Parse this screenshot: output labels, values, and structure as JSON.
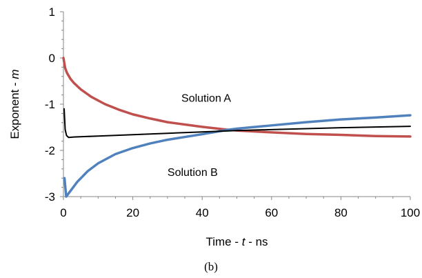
{
  "chart_data": {
    "type": "line",
    "xlim": [
      0,
      100
    ],
    "ylim": [
      -3,
      1
    ],
    "x_ticks": [
      0,
      20,
      40,
      60,
      80,
      100
    ],
    "y_ticks": [
      1,
      0,
      -1,
      -2,
      -3
    ],
    "x_tick_labels": [
      "0",
      "20",
      "40",
      "60",
      "80",
      "100"
    ],
    "y_tick_labels": [
      "1",
      "0",
      "-1",
      "-2",
      "-3"
    ],
    "xlabel": {
      "prefix": "Time - ",
      "var": "t",
      "suffix": " - ns"
    },
    "ylabel": {
      "prefix": "Exponent - ",
      "var": "m"
    },
    "grid": false,
    "caption": "(b)",
    "annotations": [
      {
        "text": "Solution A",
        "x": 34,
        "y": -0.95
      },
      {
        "text": "Solution B",
        "x": 30,
        "y": -2.55
      }
    ],
    "series": [
      {
        "color": "#c0504d",
        "points": [
          [
            0,
            0
          ],
          [
            0.5,
            -0.22
          ],
          [
            1,
            -0.32
          ],
          [
            2,
            -0.45
          ],
          [
            3,
            -0.54
          ],
          [
            5,
            -0.68
          ],
          [
            8,
            -0.84
          ],
          [
            12,
            -1.0
          ],
          [
            16,
            -1.12
          ],
          [
            20,
            -1.22
          ],
          [
            25,
            -1.31
          ],
          [
            30,
            -1.39
          ],
          [
            40,
            -1.49
          ],
          [
            47,
            -1.55
          ],
          [
            50,
            -1.57
          ],
          [
            60,
            -1.61
          ],
          [
            70,
            -1.645
          ],
          [
            80,
            -1.665
          ],
          [
            90,
            -1.69
          ],
          [
            100,
            -1.7
          ]
        ]
      },
      {
        "color": "#4f81bd",
        "points": [
          [
            0.3,
            -2.6
          ],
          [
            0.8,
            -3.0
          ],
          [
            2,
            -2.88
          ],
          [
            4,
            -2.68
          ],
          [
            7,
            -2.45
          ],
          [
            10,
            -2.28
          ],
          [
            15,
            -2.08
          ],
          [
            20,
            -1.95
          ],
          [
            25,
            -1.85
          ],
          [
            30,
            -1.77
          ],
          [
            35,
            -1.71
          ],
          [
            40,
            -1.65
          ],
          [
            47,
            -1.56
          ],
          [
            50,
            -1.53
          ],
          [
            60,
            -1.46
          ],
          [
            70,
            -1.39
          ],
          [
            80,
            -1.33
          ],
          [
            90,
            -1.29
          ],
          [
            100,
            -1.24
          ]
        ]
      },
      {
        "color": "#000000",
        "points": [
          [
            0.2,
            -1.1
          ],
          [
            0.5,
            -1.55
          ],
          [
            0.9,
            -1.68
          ],
          [
            1.5,
            -1.72
          ],
          [
            3,
            -1.71
          ],
          [
            10,
            -1.69
          ],
          [
            20,
            -1.66
          ],
          [
            30,
            -1.63
          ],
          [
            40,
            -1.6
          ],
          [
            50,
            -1.57
          ],
          [
            60,
            -1.55
          ],
          [
            70,
            -1.53
          ],
          [
            80,
            -1.51
          ],
          [
            90,
            -1.495
          ],
          [
            100,
            -1.48
          ]
        ]
      }
    ]
  }
}
